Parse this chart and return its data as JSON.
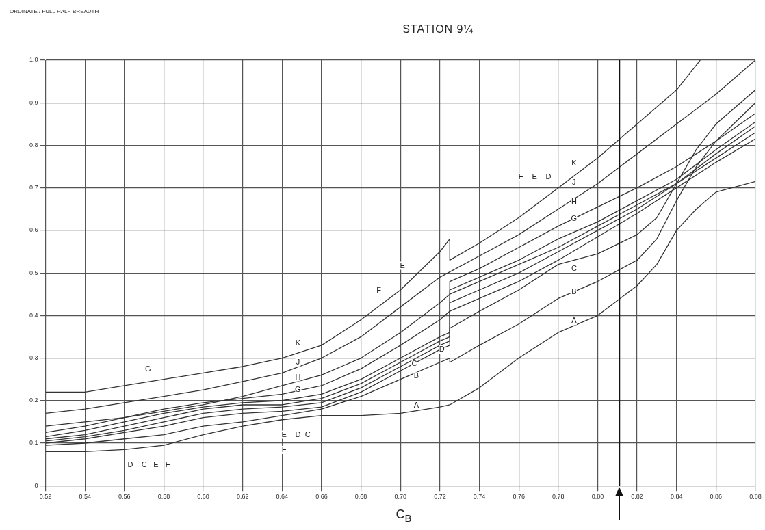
{
  "chart_data": {
    "type": "line",
    "title": "STATION 9¼",
    "xlabel": "C$_{B}$",
    "xlim": [
      0.52,
      0.88
    ],
    "xticks": [
      0.52,
      0.54,
      0.56,
      0.58,
      {
        "value": 0.6,
        "label": "0.60"
      },
      0.62,
      0.64,
      0.66,
      0.68,
      {
        "value": 0.7,
        "label": "0.70"
      },
      0.72,
      0.74,
      0.76,
      0.78,
      {
        "value": 0.8,
        "label": "0.80"
      },
      0.82,
      0.84,
      0.86,
      0.88
    ],
    "ylim": [
      0,
      1.0
    ],
    "yticks": [
      0,
      0.1,
      0.2,
      0.3,
      0.4,
      0.5,
      0.6,
      0.7,
      0.8,
      0.9,
      {
        "value": 1.0,
        "label": "1.0"
      }
    ],
    "grid": true,
    "marker": "none",
    "line_style": "solid",
    "series": [
      {
        "color": "#333333",
        "x": [
          0.52,
          0.54,
          0.56,
          0.58,
          0.6,
          0.62,
          0.64,
          0.66,
          0.68,
          0.7,
          0.72,
          0.725,
          0.725,
          0.74,
          0.76,
          0.78,
          0.8,
          0.82,
          0.84,
          0.852
        ],
        "values": [
          0.22,
          0.22,
          0.235,
          0.25,
          0.265,
          0.28,
          0.3,
          0.33,
          0.39,
          0.46,
          0.55,
          0.58,
          0.53,
          0.57,
          0.63,
          0.7,
          0.77,
          0.85,
          0.93,
          1.0
        ]
      },
      {
        "color": "#333333",
        "x": [
          0.52,
          0.54,
          0.56,
          0.58,
          0.6,
          0.62,
          0.64,
          0.66,
          0.68,
          0.7,
          0.72,
          0.74,
          0.76,
          0.78,
          0.8,
          0.82,
          0.84,
          0.86,
          0.88
        ],
        "values": [
          0.17,
          0.18,
          0.195,
          0.21,
          0.225,
          0.245,
          0.265,
          0.3,
          0.35,
          0.42,
          0.49,
          0.54,
          0.59,
          0.65,
          0.71,
          0.78,
          0.85,
          0.92,
          1.0
        ]
      },
      {
        "color": "#333333",
        "x": [
          0.52,
          0.54,
          0.56,
          0.58,
          0.6,
          0.62,
          0.64,
          0.66,
          0.68,
          0.7,
          0.72,
          0.725,
          0.725,
          0.74,
          0.76,
          0.78,
          0.8,
          0.82,
          0.84,
          0.86,
          0.88
        ],
        "values": [
          0.14,
          0.15,
          0.16,
          0.175,
          0.19,
          0.21,
          0.235,
          0.26,
          0.3,
          0.36,
          0.43,
          0.45,
          0.48,
          0.51,
          0.56,
          0.61,
          0.655,
          0.7,
          0.75,
          0.81,
          0.875
        ]
      },
      {
        "color": "#333333",
        "x": [
          0.52,
          0.54,
          0.56,
          0.58,
          0.6,
          0.62,
          0.64,
          0.66,
          0.68,
          0.7,
          0.72,
          0.725,
          0.725,
          0.74,
          0.76,
          0.78,
          0.8,
          0.82,
          0.84,
          0.86,
          0.88
        ],
        "values": [
          0.125,
          0.14,
          0.16,
          0.18,
          0.195,
          0.205,
          0.215,
          0.235,
          0.275,
          0.33,
          0.39,
          0.41,
          0.46,
          0.49,
          0.53,
          0.58,
          0.62,
          0.67,
          0.72,
          0.79,
          0.855
        ]
      },
      {
        "color": "#333333",
        "x": [
          0.52,
          0.54,
          0.56,
          0.58,
          0.6,
          0.62,
          0.64,
          0.66,
          0.68,
          0.7,
          0.72,
          0.725,
          0.725,
          0.74,
          0.76,
          0.78,
          0.8,
          0.82,
          0.84,
          0.86,
          0.88
        ],
        "values": [
          0.115,
          0.13,
          0.15,
          0.17,
          0.185,
          0.195,
          0.2,
          0.215,
          0.25,
          0.3,
          0.35,
          0.36,
          0.45,
          0.48,
          0.52,
          0.56,
          0.61,
          0.66,
          0.71,
          0.78,
          0.845
        ]
      },
      {
        "color": "#333333",
        "x": [
          0.52,
          0.54,
          0.56,
          0.58,
          0.6,
          0.62,
          0.64,
          0.66,
          0.68,
          0.7,
          0.72,
          0.725,
          0.725,
          0.74,
          0.76,
          0.78,
          0.8,
          0.82,
          0.84,
          0.86,
          0.88
        ],
        "values": [
          0.11,
          0.12,
          0.14,
          0.16,
          0.18,
          0.19,
          0.19,
          0.205,
          0.24,
          0.29,
          0.34,
          0.35,
          0.43,
          0.46,
          0.5,
          0.55,
          0.6,
          0.65,
          0.71,
          0.77,
          0.83
        ]
      },
      {
        "color": "#333333",
        "x": [
          0.52,
          0.54,
          0.56,
          0.58,
          0.6,
          0.62,
          0.64,
          0.66,
          0.68,
          0.7,
          0.72,
          0.725,
          0.725,
          0.74,
          0.76,
          0.78,
          0.8,
          0.82,
          0.84,
          0.86,
          0.88
        ],
        "values": [
          0.105,
          0.115,
          0.13,
          0.15,
          0.17,
          0.18,
          0.185,
          0.195,
          0.23,
          0.28,
          0.33,
          0.34,
          0.41,
          0.44,
          0.48,
          0.53,
          0.585,
          0.64,
          0.7,
          0.76,
          0.815
        ]
      },
      {
        "color": "#333333",
        "x": [
          0.52,
          0.54,
          0.56,
          0.58,
          0.6,
          0.62,
          0.64,
          0.66,
          0.68,
          0.7,
          0.72,
          0.725,
          0.725,
          0.74,
          0.76,
          0.78,
          0.8,
          0.82,
          0.83,
          0.84,
          0.85,
          0.86,
          0.88
        ],
        "values": [
          0.1,
          0.11,
          0.125,
          0.14,
          0.16,
          0.17,
          0.175,
          0.185,
          0.22,
          0.27,
          0.32,
          0.33,
          0.37,
          0.41,
          0.46,
          0.52,
          0.545,
          0.59,
          0.63,
          0.71,
          0.79,
          0.85,
          0.93
        ]
      },
      {
        "color": "#333333",
        "x": [
          0.52,
          0.54,
          0.56,
          0.58,
          0.6,
          0.62,
          0.64,
          0.66,
          0.68,
          0.7,
          0.72,
          0.725,
          0.725,
          0.74,
          0.76,
          0.78,
          0.8,
          0.82,
          0.83,
          0.84,
          0.85,
          0.86,
          0.88
        ],
        "values": [
          0.095,
          0.1,
          0.11,
          0.12,
          0.14,
          0.15,
          0.165,
          0.18,
          0.21,
          0.25,
          0.29,
          0.3,
          0.29,
          0.33,
          0.38,
          0.44,
          0.48,
          0.53,
          0.58,
          0.67,
          0.75,
          0.81,
          0.9
        ]
      },
      {
        "color": "#333333",
        "x": [
          0.52,
          0.54,
          0.56,
          0.58,
          0.6,
          0.62,
          0.64,
          0.66,
          0.68,
          0.7,
          0.72,
          0.725,
          0.74,
          0.76,
          0.78,
          0.8,
          0.82,
          0.83,
          0.84,
          0.85,
          0.86,
          0.88
        ],
        "values": [
          0.08,
          0.08,
          0.085,
          0.095,
          0.12,
          0.14,
          0.155,
          0.165,
          0.165,
          0.17,
          0.185,
          0.19,
          0.23,
          0.3,
          0.36,
          0.4,
          0.47,
          0.52,
          0.6,
          0.65,
          0.69,
          0.715
        ]
      }
    ],
    "ref_lines": [
      {
        "axis": "x",
        "value": 0.811
      }
    ],
    "annotations": [
      "ORDINATE / FULL HALF-BREADTH",
      {
        "text": "K",
        "x": 0.788,
        "y": 0.757
      },
      {
        "text": "J",
        "x": 0.788,
        "y": 0.712
      },
      {
        "text": "H",
        "x": 0.788,
        "y": 0.667
      },
      {
        "text": "G",
        "x": 0.788,
        "y": 0.627
      },
      {
        "text": "C",
        "x": 0.788,
        "y": 0.51
      },
      {
        "text": "B",
        "x": 0.788,
        "y": 0.455
      },
      {
        "text": "A",
        "x": 0.788,
        "y": 0.387
      },
      {
        "text": "F",
        "x": 0.761,
        "y": 0.725
      },
      {
        "text": "E",
        "x": 0.768,
        "y": 0.725
      },
      {
        "text": "D",
        "x": 0.775,
        "y": 0.725
      },
      {
        "text": "K",
        "x": 0.648,
        "y": 0.335
      },
      {
        "text": "J",
        "x": 0.648,
        "y": 0.29
      },
      {
        "text": "H",
        "x": 0.648,
        "y": 0.255
      },
      {
        "text": "G",
        "x": 0.648,
        "y": 0.225
      },
      {
        "text": "F",
        "x": 0.689,
        "y": 0.458
      },
      {
        "text": "E",
        "x": 0.701,
        "y": 0.517
      },
      {
        "text": "C",
        "x": 0.707,
        "y": 0.286
      },
      {
        "text": "B",
        "x": 0.708,
        "y": 0.257
      },
      {
        "text": "A",
        "x": 0.708,
        "y": 0.188
      },
      {
        "text": "D",
        "x": 0.721,
        "y": 0.32
      },
      {
        "text": "G",
        "x": 0.572,
        "y": 0.273
      },
      {
        "text": "D",
        "x": 0.563,
        "y": 0.048
      },
      {
        "text": "C",
        "x": 0.57,
        "y": 0.048
      },
      {
        "text": "E",
        "x": 0.576,
        "y": 0.048
      },
      {
        "text": "F",
        "x": 0.582,
        "y": 0.048
      },
      {
        "text": "E",
        "x": 0.641,
        "y": 0.12
      },
      {
        "text": "D",
        "x": 0.648,
        "y": 0.12
      },
      {
        "text": "C",
        "x": 0.653,
        "y": 0.12
      },
      {
        "text": "F",
        "x": 0.641,
        "y": 0.084
      }
    ]
  }
}
